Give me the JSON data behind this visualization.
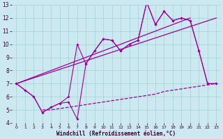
{
  "xlabel": "Windchill (Refroidissement éolien,°C)",
  "bg_color": "#cce8f0",
  "line_color": "#990099",
  "xlim": [
    -0.5,
    23.5
  ],
  "ylim": [
    4,
    13
  ],
  "xticks": [
    0,
    1,
    2,
    3,
    4,
    5,
    6,
    7,
    8,
    9,
    10,
    11,
    12,
    13,
    14,
    15,
    16,
    17,
    18,
    19,
    20,
    21,
    22,
    23
  ],
  "yticks": [
    4,
    5,
    6,
    7,
    8,
    9,
    10,
    11,
    12,
    13
  ],
  "main_x": [
    0,
    1,
    2,
    3,
    4,
    5,
    6,
    7,
    8,
    9,
    10,
    11,
    12,
    13,
    14,
    15,
    16,
    17,
    18,
    19,
    20,
    21,
    22,
    23
  ],
  "main_y": [
    7.0,
    6.5,
    6.0,
    4.8,
    5.2,
    5.5,
    6.0,
    10.0,
    8.5,
    9.5,
    10.4,
    10.3,
    9.5,
    10.0,
    10.3,
    13.2,
    11.5,
    12.5,
    11.8,
    12.0,
    11.8,
    9.5,
    7.0,
    7.0
  ],
  "alt_x": [
    0,
    1,
    2,
    3,
    4,
    5,
    6,
    7,
    8,
    9,
    10,
    11,
    12,
    13,
    14,
    15,
    16,
    17,
    18,
    19,
    20,
    21,
    22,
    23
  ],
  "alt_y": [
    7.0,
    6.5,
    6.0,
    4.8,
    5.2,
    5.5,
    5.6,
    4.3,
    8.5,
    9.5,
    10.4,
    10.3,
    9.5,
    10.0,
    10.3,
    13.2,
    11.5,
    12.5,
    11.8,
    12.0,
    11.8,
    9.5,
    7.0,
    7.0
  ],
  "trend1_x": [
    0,
    20
  ],
  "trend1_y": [
    7.0,
    12.0
  ],
  "trend2_x": [
    0,
    23
  ],
  "trend2_y": [
    7.0,
    12.0
  ],
  "dashed_x": [
    3,
    4,
    5,
    6,
    7,
    8,
    9,
    10,
    11,
    12,
    13,
    14,
    15,
    16,
    17,
    18,
    19,
    20,
    21,
    22,
    23
  ],
  "dashed_y": [
    5.0,
    5.0,
    5.1,
    5.2,
    5.3,
    5.4,
    5.5,
    5.6,
    5.7,
    5.8,
    5.9,
    6.0,
    6.1,
    6.2,
    6.4,
    6.5,
    6.6,
    6.7,
    6.8,
    6.9,
    7.0
  ]
}
